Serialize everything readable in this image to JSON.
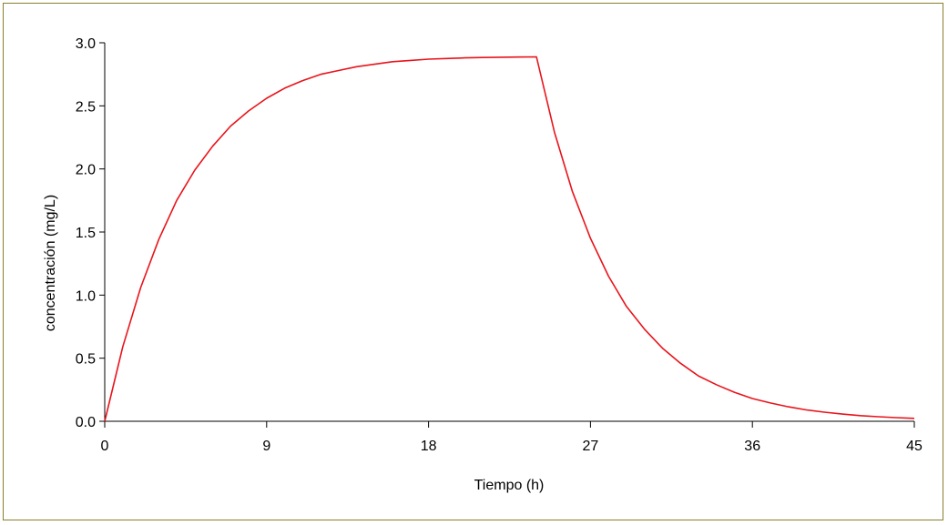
{
  "chart_data": {
    "type": "line",
    "title": "",
    "xlabel": "Tiempo (h)",
    "ylabel": "concentración (mg/L)",
    "xlim": [
      0,
      45
    ],
    "ylim": [
      0,
      3.0
    ],
    "x_ticks": [
      0,
      9,
      18,
      27,
      36,
      45
    ],
    "y_ticks": [
      0.0,
      0.5,
      1.0,
      1.5,
      2.0,
      2.5,
      3.0
    ],
    "x_tick_labels": [
      "0",
      "9",
      "18",
      "27",
      "36",
      "45"
    ],
    "y_tick_labels": [
      "0.0",
      "0.5",
      "1.0",
      "1.5",
      "2.0",
      "2.5",
      "3.0"
    ],
    "grid": false,
    "legend": "none",
    "line_color": "#e8141b",
    "frame_color": "#8a7f2c",
    "series": [
      {
        "x": [
          0,
          1,
          2,
          3,
          4,
          5,
          6,
          7,
          8,
          9,
          10,
          11,
          12,
          13,
          14,
          15,
          16,
          17,
          18,
          19,
          20,
          21,
          22,
          23,
          24,
          25,
          26,
          27,
          28,
          29,
          30,
          31,
          32,
          33,
          34,
          35,
          36,
          37,
          38,
          39,
          40,
          41,
          42,
          43,
          44,
          45
        ],
        "values": [
          0.0,
          0.59,
          1.06,
          1.44,
          1.75,
          1.99,
          2.18,
          2.34,
          2.46,
          2.56,
          2.64,
          2.7,
          2.75,
          2.78,
          2.81,
          2.83,
          2.85,
          2.86,
          2.87,
          2.875,
          2.88,
          2.883,
          2.885,
          2.887,
          2.888,
          2.29,
          1.82,
          1.45,
          1.15,
          0.91,
          0.73,
          0.58,
          0.46,
          0.36,
          0.29,
          0.23,
          0.18,
          0.145,
          0.115,
          0.09,
          0.072,
          0.057,
          0.045,
          0.036,
          0.029,
          0.023
        ]
      }
    ]
  }
}
